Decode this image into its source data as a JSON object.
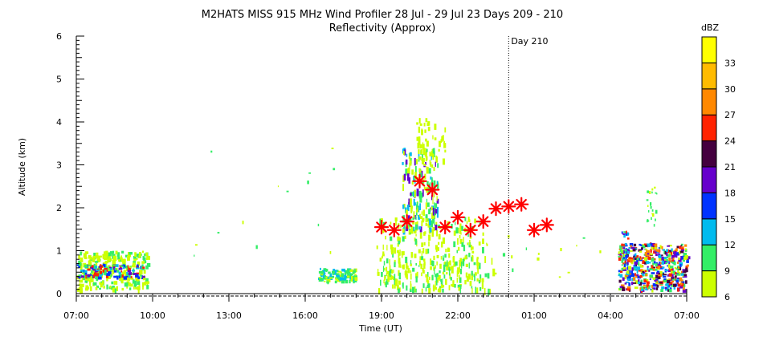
{
  "chart_data": {
    "type": "heatmap",
    "title": "M2HATS MISS 915 MHz Wind Profiler  28 Jul - 29 Jul 23 Days 209 - 210",
    "subtitle": "Reflectivity (Approx)",
    "xlabel": "Time (UT)",
    "ylabel": "Altitude (km)",
    "x_tick_labels": [
      "07:00",
      "10:00",
      "13:00",
      "16:00",
      "19:00",
      "22:00",
      "01:00",
      "04:00",
      "07:00"
    ],
    "y_tick_labels": [
      "0",
      "1",
      "2",
      "3",
      "4",
      "5",
      "6"
    ],
    "xlim_hours": [
      0,
      24
    ],
    "ylim_km": [
      0,
      6
    ],
    "annotation": "Day 210",
    "annotation_x_hours": 17,
    "colorbar": {
      "title": "dBZ",
      "levels": [
        6,
        9,
        12,
        15,
        18,
        21,
        24,
        27,
        30,
        33
      ],
      "colors": [
        "#ccff00",
        "#33ee66",
        "#00bbee",
        "#0033ff",
        "#6600cc",
        "#44003f",
        "#ff2200",
        "#ff8800",
        "#ffbb00",
        "#ffff00"
      ]
    },
    "markers_color": "#ff0000",
    "markers": [
      {
        "x": 12.0,
        "y": 1.55
      },
      {
        "x": 12.5,
        "y": 1.48
      },
      {
        "x": 13.0,
        "y": 1.68
      },
      {
        "x": 13.5,
        "y": 2.62
      },
      {
        "x": 14.0,
        "y": 2.42
      },
      {
        "x": 14.5,
        "y": 1.55
      },
      {
        "x": 15.0,
        "y": 1.78
      },
      {
        "x": 15.5,
        "y": 1.48
      },
      {
        "x": 16.0,
        "y": 1.68
      },
      {
        "x": 16.5,
        "y": 1.98
      },
      {
        "x": 17.0,
        "y": 2.03
      },
      {
        "x": 17.5,
        "y": 2.08
      },
      {
        "x": 18.0,
        "y": 1.48
      },
      {
        "x": 18.5,
        "y": 1.6
      }
    ]
  }
}
